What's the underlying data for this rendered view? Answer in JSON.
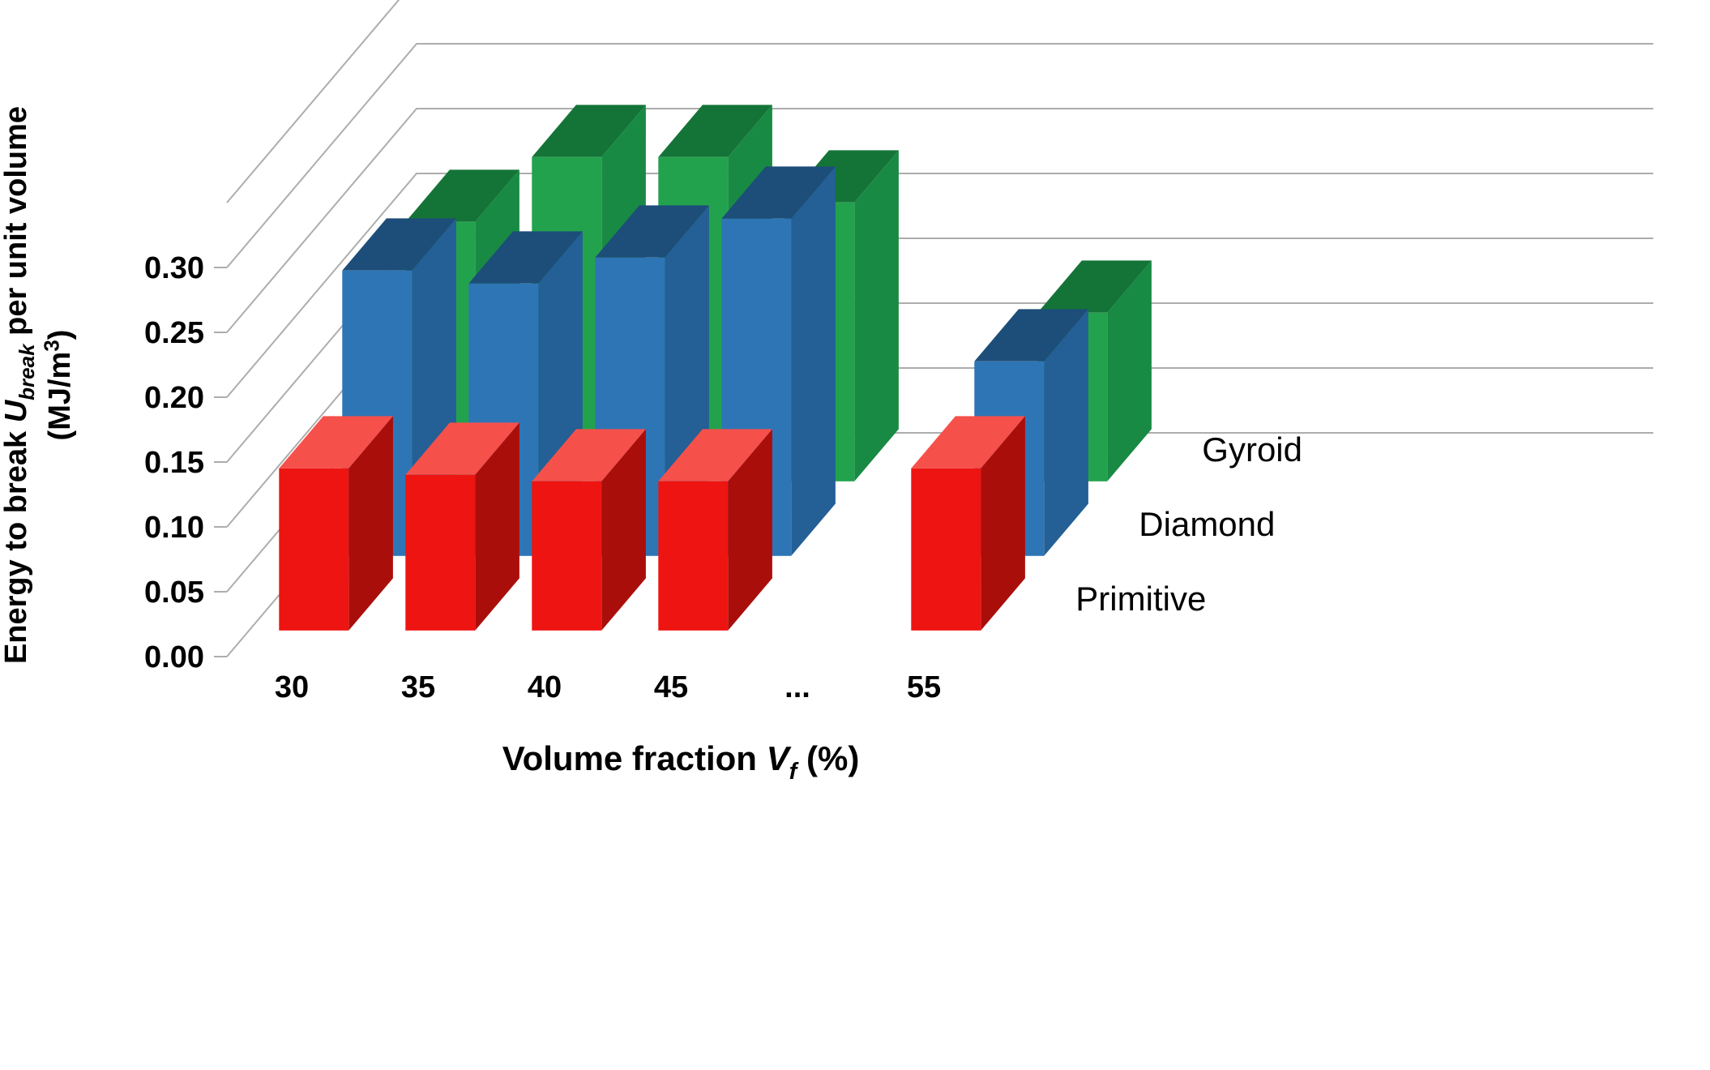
{
  "figure": {
    "background": "#FFFFFF",
    "gridline_color": "#ADADAD",
    "text_color": "#000000"
  },
  "chart_data": {
    "type": "bar",
    "projection": "3d-column",
    "title": "",
    "x_axis_title_plain": "Volume fraction Vf (%)",
    "y_axis_title_plain": "Energy to break Ubreak per unit volume (MJ/m3)",
    "x_title_segments": [
      {
        "t": "Volume fraction "
      },
      {
        "t": "V",
        "i": true
      },
      {
        "t": "f",
        "i": true,
        "sub": true
      },
      {
        "t": " (%)"
      }
    ],
    "y_title_line1_segments": [
      {
        "t": "Energy to break "
      },
      {
        "t": "U",
        "i": true
      },
      {
        "t": "break",
        "i": true,
        "sub": true
      },
      {
        "t": " per unit volume"
      }
    ],
    "y_title_line2_segments": [
      {
        "t": "(MJ/m"
      },
      {
        "t": "3",
        "sup": true
      },
      {
        "t": ")"
      }
    ],
    "categories": [
      "30",
      "35",
      "40",
      "45",
      "...",
      "55"
    ],
    "y_ticks": [
      "0.00",
      "0.05",
      "0.10",
      "0.15",
      "0.20",
      "0.25",
      "0.30"
    ],
    "y_tick_step": 0.05,
    "ylim": [
      0,
      0.35
    ],
    "grid": true,
    "legend_position": "right-depth-axis",
    "series": [
      {
        "name": "Primitive",
        "color_front": "#EE1411",
        "color_top": "#F6504B",
        "color_side": "#AA0E0B",
        "values": [
          0.125,
          0.12,
          0.115,
          0.115,
          null,
          0.125
        ]
      },
      {
        "name": "Diamond",
        "color_front": "#2E75B6",
        "color_top": "#1C4E79",
        "color_side": "#245F95",
        "values": [
          0.22,
          0.21,
          0.23,
          0.26,
          null,
          0.15
        ]
      },
      {
        "name": "Gyroid",
        "color_front": "#23A24D",
        "color_top": "#147437",
        "color_side": "#188A44",
        "values": [
          0.2,
          0.25,
          0.25,
          0.215,
          null,
          0.13
        ]
      }
    ]
  }
}
